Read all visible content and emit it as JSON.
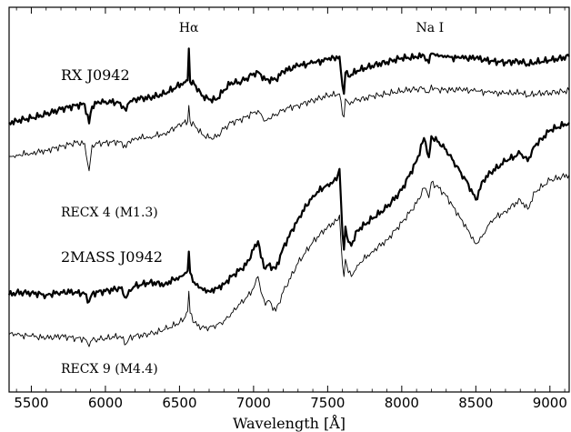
{
  "chart_data": {
    "type": "line",
    "xlabel": "Wavelength [Å]",
    "ylabel": "",
    "xlim": [
      5350,
      9130
    ],
    "ylim": [
      0,
      1
    ],
    "grid": false,
    "legend": "none",
    "x_ticks": [
      5500,
      6000,
      6500,
      7000,
      7500,
      8000,
      8500,
      9000
    ],
    "line_annotations": [
      {
        "label": "Hα",
        "x": 6563
      },
      {
        "label": "Na I",
        "x": 8190
      }
    ],
    "series_labels": [
      "RX J0942",
      "2MASS J0942"
    ],
    "reference_labels": [
      "RECX 4 (M1.3)",
      "RECX 9 (M4.4)"
    ],
    "series": [
      {
        "style": "thick",
        "x": [
          5350,
          5400,
          5500,
          5600,
          5700,
          5800,
          5860,
          5890,
          5910,
          5950,
          6000,
          6100,
          6140,
          6160,
          6200,
          6300,
          6400,
          6480,
          6530,
          6555,
          6563,
          6572,
          6600,
          6650,
          6700,
          6750,
          6800,
          6850,
          6900,
          6950,
          7000,
          7030,
          7050,
          7080,
          7100,
          7150,
          7200,
          7300,
          7400,
          7500,
          7580,
          7600,
          7610,
          7620,
          7640,
          7700,
          7800,
          7900,
          8000,
          8100,
          8150,
          8183,
          8200,
          8220,
          8250,
          8300,
          8400,
          8500,
          8600,
          8700,
          8800,
          8850,
          8900,
          9000,
          9130
        ],
        "values": [
          0.7,
          0.705,
          0.712,
          0.722,
          0.735,
          0.745,
          0.748,
          0.698,
          0.742,
          0.755,
          0.755,
          0.752,
          0.731,
          0.752,
          0.762,
          0.765,
          0.775,
          0.793,
          0.805,
          0.81,
          0.893,
          0.806,
          0.8,
          0.77,
          0.76,
          0.76,
          0.785,
          0.805,
          0.805,
          0.815,
          0.828,
          0.832,
          0.825,
          0.811,
          0.812,
          0.812,
          0.833,
          0.848,
          0.855,
          0.864,
          0.872,
          0.795,
          0.775,
          0.83,
          0.82,
          0.835,
          0.848,
          0.858,
          0.868,
          0.87,
          0.875,
          0.855,
          0.88,
          0.878,
          0.872,
          0.87,
          0.868,
          0.868,
          0.86,
          0.857,
          0.86,
          0.852,
          0.857,
          0.862,
          0.872
        ]
      },
      {
        "style": "thin",
        "x": [
          5350,
          5400,
          5500,
          5600,
          5700,
          5800,
          5860,
          5890,
          5910,
          5950,
          6000,
          6100,
          6140,
          6160,
          6200,
          6300,
          6400,
          6480,
          6530,
          6555,
          6563,
          6572,
          6600,
          6650,
          6700,
          6750,
          6800,
          6850,
          6900,
          6950,
          7000,
          7030,
          7050,
          7080,
          7100,
          7150,
          7200,
          7300,
          7400,
          7500,
          7580,
          7600,
          7610,
          7620,
          7640,
          7700,
          7800,
          7900,
          8000,
          8100,
          8150,
          8183,
          8200,
          8220,
          8250,
          8300,
          8400,
          8500,
          8600,
          8700,
          8800,
          8850,
          8900,
          9000,
          9130
        ],
        "values": [
          0.612,
          0.616,
          0.621,
          0.628,
          0.638,
          0.648,
          0.646,
          0.575,
          0.642,
          0.646,
          0.648,
          0.651,
          0.635,
          0.652,
          0.66,
          0.663,
          0.672,
          0.688,
          0.7,
          0.702,
          0.745,
          0.703,
          0.695,
          0.67,
          0.66,
          0.662,
          0.684,
          0.7,
          0.706,
          0.715,
          0.727,
          0.732,
          0.723,
          0.705,
          0.712,
          0.722,
          0.735,
          0.745,
          0.758,
          0.77,
          0.775,
          0.72,
          0.715,
          0.762,
          0.752,
          0.758,
          0.768,
          0.775,
          0.783,
          0.788,
          0.79,
          0.778,
          0.798,
          0.79,
          0.786,
          0.785,
          0.786,
          0.782,
          0.778,
          0.776,
          0.778,
          0.77,
          0.775,
          0.778,
          0.783
        ]
      },
      {
        "style": "thick",
        "x": [
          5350,
          5400,
          5500,
          5600,
          5700,
          5800,
          5860,
          5890,
          5910,
          5950,
          6000,
          6100,
          6140,
          6160,
          6200,
          6300,
          6400,
          6500,
          6530,
          6555,
          6563,
          6572,
          6600,
          6650,
          6700,
          6750,
          6800,
          6850,
          6900,
          6950,
          7000,
          7030,
          7050,
          7080,
          7100,
          7150,
          7200,
          7300,
          7400,
          7500,
          7560,
          7580,
          7600,
          7610,
          7620,
          7640,
          7660,
          7700,
          7800,
          7900,
          8000,
          8100,
          8150,
          8183,
          8200,
          8250,
          8300,
          8350,
          8400,
          8450,
          8500,
          8550,
          8600,
          8700,
          8800,
          8850,
          8900,
          9000,
          9130
        ],
        "values": [
          0.252,
          0.258,
          0.258,
          0.252,
          0.26,
          0.26,
          0.255,
          0.235,
          0.255,
          0.26,
          0.262,
          0.27,
          0.245,
          0.265,
          0.275,
          0.285,
          0.28,
          0.3,
          0.305,
          0.315,
          0.365,
          0.31,
          0.285,
          0.27,
          0.262,
          0.27,
          0.28,
          0.3,
          0.315,
          0.33,
          0.37,
          0.392,
          0.35,
          0.32,
          0.33,
          0.32,
          0.375,
          0.45,
          0.51,
          0.54,
          0.55,
          0.58,
          0.41,
          0.37,
          0.43,
          0.39,
          0.38,
          0.42,
          0.45,
          0.48,
          0.525,
          0.6,
          0.66,
          0.61,
          0.665,
          0.65,
          0.63,
          0.6,
          0.57,
          0.54,
          0.5,
          0.55,
          0.57,
          0.6,
          0.62,
          0.6,
          0.64,
          0.68,
          0.7
        ]
      },
      {
        "style": "thin",
        "x": [
          5350,
          5400,
          5500,
          5600,
          5700,
          5800,
          5860,
          5890,
          5910,
          5950,
          6000,
          6100,
          6140,
          6160,
          6200,
          6300,
          6400,
          6500,
          6530,
          6555,
          6563,
          6572,
          6600,
          6650,
          6700,
          6750,
          6800,
          6850,
          6900,
          6950,
          7000,
          7030,
          7050,
          7080,
          7100,
          7150,
          7200,
          7300,
          7400,
          7500,
          7560,
          7580,
          7600,
          7610,
          7620,
          7640,
          7660,
          7700,
          7800,
          7900,
          8000,
          8100,
          8150,
          8183,
          8200,
          8250,
          8300,
          8350,
          8400,
          8450,
          8500,
          8550,
          8600,
          8700,
          8800,
          8850,
          8900,
          9000,
          9130
        ],
        "values": [
          0.15,
          0.148,
          0.145,
          0.14,
          0.145,
          0.14,
          0.138,
          0.118,
          0.135,
          0.138,
          0.14,
          0.145,
          0.125,
          0.14,
          0.145,
          0.15,
          0.162,
          0.18,
          0.19,
          0.21,
          0.262,
          0.205,
          0.18,
          0.168,
          0.168,
          0.175,
          0.185,
          0.205,
          0.228,
          0.245,
          0.27,
          0.3,
          0.26,
          0.225,
          0.238,
          0.21,
          0.26,
          0.335,
          0.39,
          0.43,
          0.445,
          0.46,
          0.33,
          0.3,
          0.345,
          0.31,
          0.3,
          0.33,
          0.365,
          0.395,
          0.44,
          0.49,
          0.53,
          0.505,
          0.545,
          0.53,
          0.51,
          0.48,
          0.45,
          0.42,
          0.385,
          0.41,
          0.445,
          0.47,
          0.5,
          0.475,
          0.52,
          0.55,
          0.565
        ]
      }
    ]
  }
}
